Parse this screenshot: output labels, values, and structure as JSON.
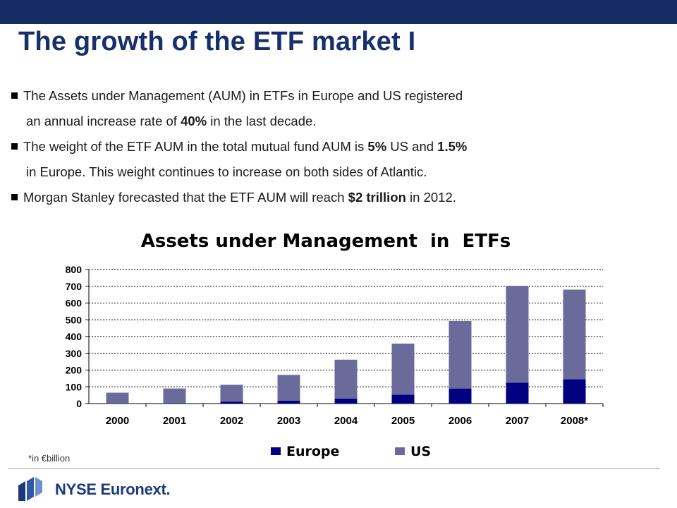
{
  "slide": {
    "title": "The growth of the ETF market I",
    "bullets": [
      {
        "line1": [
          {
            "t": "The Assets under Management (AUM) in ETFs in Europe and US registered"
          }
        ],
        "line2": [
          {
            "t": "an annual increase rate of "
          },
          {
            "t": "40%",
            "b": true
          },
          {
            "t": " in the last decade."
          }
        ]
      },
      {
        "line1": [
          {
            "t": "The weight of the ETF AUM in the total mutual fund AUM is "
          },
          {
            "t": "5%",
            "b": true
          },
          {
            "t": " US and "
          },
          {
            "t": "1.5%",
            "b": true
          }
        ],
        "line2": [
          {
            "t": "in Europe. This weight continues to increase on both sides of Atlantic."
          }
        ]
      },
      {
        "line1": [
          {
            "t": "Morgan Stanley forecasted that the ETF AUM will reach "
          },
          {
            "t": "$2 trillion",
            "b": true
          },
          {
            "t": " in 2012."
          }
        ],
        "line2": []
      }
    ],
    "footnote": "*in €billion",
    "logo_text": "NYSE Euronext."
  },
  "colors": {
    "top_bar": "#182c64",
    "title": "#17306b",
    "europe": "#000080",
    "us": "#6b6b9b"
  },
  "chart_data": {
    "type": "bar",
    "stacked": true,
    "title": "Assets under Management  in  ETFs",
    "categories": [
      "2000",
      "2001",
      "2002",
      "2003",
      "2004",
      "2005",
      "2006",
      "2007",
      "2008*"
    ],
    "series": [
      {
        "name": "Europe",
        "color": "#000080",
        "values": [
          1,
          3,
          12,
          18,
          30,
          53,
          90,
          125,
          145
        ]
      },
      {
        "name": "US",
        "color": "#6b6b9b",
        "values": [
          64,
          87,
          100,
          153,
          232,
          305,
          403,
          577,
          535
        ]
      }
    ],
    "ylim": [
      0,
      800
    ],
    "yticks": [
      0,
      100,
      200,
      300,
      400,
      500,
      600,
      700,
      800
    ],
    "xlabel": "",
    "ylabel": "",
    "grid": "horizontal dashed",
    "legend": "bottom"
  }
}
